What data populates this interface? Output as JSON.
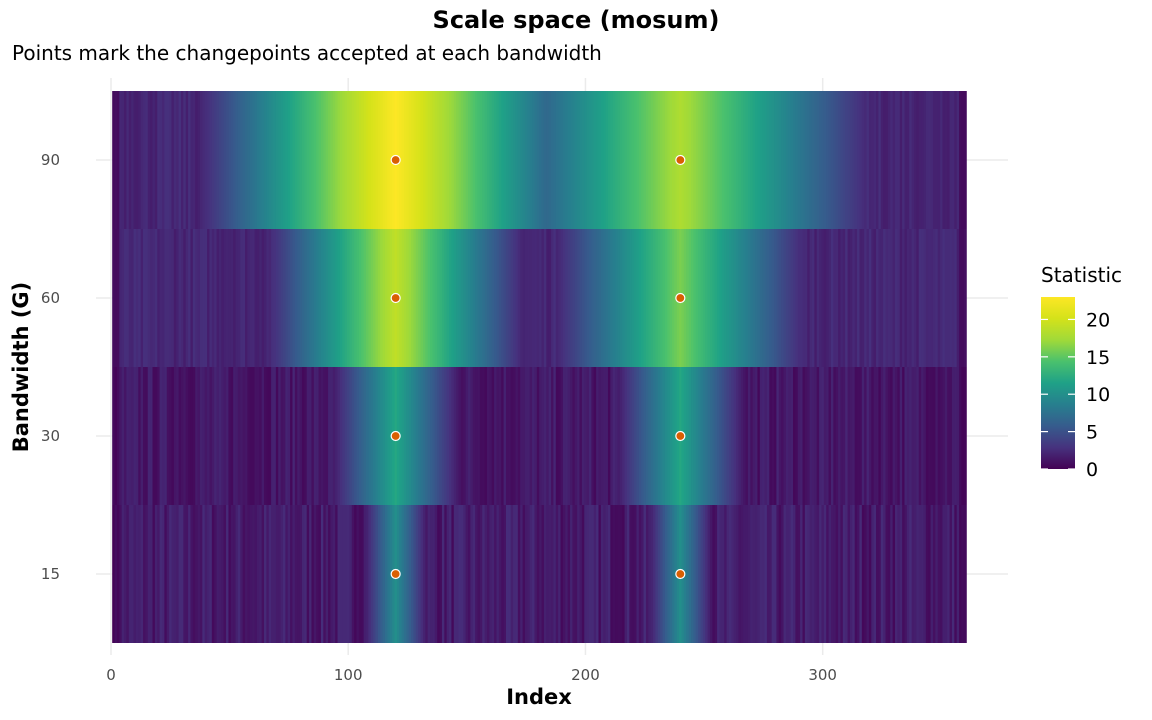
{
  "chart_data": {
    "type": "heatmap",
    "title": "Scale space (mosum)",
    "subtitle": "Points mark the changepoints accepted at each bandwidth",
    "xlabel": "Index",
    "ylabel": "Bandwidth (G)",
    "x_range": [
      1,
      360
    ],
    "xlim": [
      0,
      360
    ],
    "x_ticks": [
      0,
      100,
      200,
      300
    ],
    "bandwidths": [
      15,
      30,
      60,
      90
    ],
    "y_ticks": [
      15,
      30,
      60,
      90
    ],
    "legend": {
      "title": "Statistic",
      "position": "right",
      "range": [
        0,
        23
      ],
      "ticks": [
        0,
        5,
        10,
        15,
        20
      ],
      "colormap": "viridis"
    },
    "changepoints_x": [
      120,
      240
    ],
    "peak_values": [
      {
        "bandwidth": 15,
        "peaks": [
          10,
          10
        ]
      },
      {
        "bandwidth": 30,
        "peaks": [
          12,
          12
        ]
      },
      {
        "bandwidth": 60,
        "peaks": [
          19,
          16
        ]
      },
      {
        "bandwidth": 90,
        "peaks": [
          23,
          18
        ]
      }
    ],
    "points": [
      {
        "x": 120,
        "bandwidth": 15
      },
      {
        "x": 240,
        "bandwidth": 15
      },
      {
        "x": 120,
        "bandwidth": 30
      },
      {
        "x": 240,
        "bandwidth": 30
      },
      {
        "x": 120,
        "bandwidth": 60
      },
      {
        "x": 240,
        "bandwidth": 60
      },
      {
        "x": 120,
        "bandwidth": 90
      },
      {
        "x": 240,
        "bandwidth": 90
      }
    ],
    "point_color": "#d95f02",
    "grid": true
  }
}
